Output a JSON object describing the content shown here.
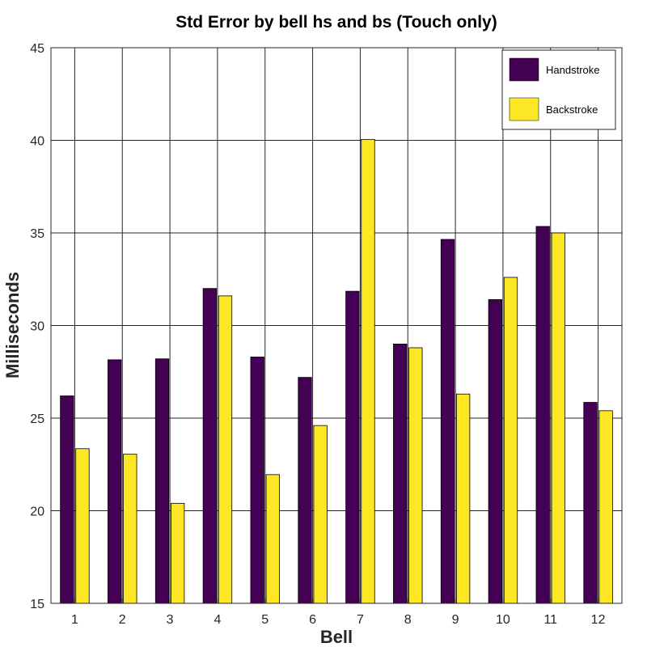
{
  "chart_data": {
    "type": "bar",
    "title": "Std Error by bell hs and bs (Touch only)",
    "xlabel": "Bell",
    "ylabel": "Milliseconds",
    "categories": [
      "1",
      "2",
      "3",
      "4",
      "5",
      "6",
      "7",
      "8",
      "9",
      "10",
      "11",
      "12"
    ],
    "ylim": [
      15,
      45
    ],
    "yticks": [
      15,
      20,
      25,
      30,
      35,
      40,
      45
    ],
    "grid": true,
    "legend_position": "top-right",
    "series": [
      {
        "name": "Handstroke",
        "color": "#440154",
        "values": [
          26.2,
          28.15,
          28.2,
          32.0,
          28.3,
          27.2,
          31.85,
          29.0,
          34.65,
          31.4,
          35.35,
          25.85
        ]
      },
      {
        "name": "Backstroke",
        "color": "#fde725",
        "values": [
          23.35,
          23.05,
          20.4,
          31.6,
          21.95,
          24.6,
          40.05,
          28.8,
          26.3,
          32.6,
          35.0,
          25.4
        ]
      }
    ]
  }
}
